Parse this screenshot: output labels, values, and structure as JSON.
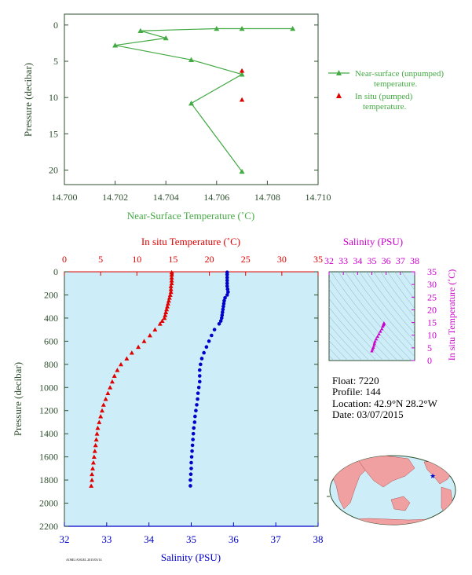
{
  "colors": {
    "frame": "#2f4f2f",
    "green": "#44aa44",
    "red": "#e00000",
    "blue": "#0000cc",
    "magenta": "#cc00cc",
    "panel_bg": "#cdeef8",
    "land": "#f0a0a0",
    "ocean": "#cdeef8"
  },
  "float_info": {
    "float": "Float:  7220",
    "profile": "Profile:  144",
    "location": "Location:  42.9°N  28.2°W",
    "date": "Date:  03/07/2015"
  },
  "footer_text": "AOML/ANGEL 2015/03/14",
  "chart_data": [
    {
      "type": "line",
      "id": "near-surface",
      "xlabel": "Near-Surface Temperature (˚C)",
      "ylabel": "Pressure (decibar)",
      "xlim": [
        14.7,
        14.71
      ],
      "ylim": [
        22,
        -1.5
      ],
      "xticks": [
        "14.700",
        "14.702",
        "14.704",
        "14.706",
        "14.708",
        "14.710"
      ],
      "yticks": [
        "0",
        "5",
        "10",
        "15",
        "20"
      ],
      "series": [
        {
          "name": "Near-surface (unpumped) temperature.",
          "marker": "triangle",
          "x": [
            14.709,
            14.707,
            14.706,
            14.703,
            14.704,
            14.702,
            14.705,
            14.707,
            14.705,
            14.707
          ],
          "y": [
            0.5,
            0.5,
            0.5,
            0.8,
            1.8,
            2.8,
            4.8,
            6.8,
            10.8,
            20.2
          ]
        },
        {
          "name": "In situ (pumped) temperature.",
          "marker": "triangle",
          "x": [
            14.707,
            14.707
          ],
          "y": [
            6.3,
            10.3
          ]
        }
      ],
      "legend": "right"
    },
    {
      "type": "scatter",
      "id": "profile",
      "ylabel": "Pressure (decibar)",
      "ylim": [
        0,
        2200
      ],
      "yticks": [
        "0",
        "200",
        "400",
        "600",
        "800",
        "1000",
        "1200",
        "1400",
        "1600",
        "1800",
        "2000",
        "2200"
      ],
      "top_axis": {
        "label": "In situ Temperature (˚C)",
        "range": [
          0,
          35
        ],
        "ticks": [
          "0",
          "5",
          "10",
          "15",
          "20",
          "25",
          "30",
          "35"
        ]
      },
      "bottom_axis": {
        "label": "Salinity (PSU)",
        "range": [
          32,
          38
        ],
        "ticks": [
          "32",
          "33",
          "34",
          "35",
          "36",
          "37",
          "38"
        ]
      },
      "temperature": {
        "pressure": [
          5,
          25,
          50,
          75,
          100,
          125,
          150,
          175,
          200,
          225,
          250,
          275,
          300,
          325,
          350,
          375,
          400,
          425,
          450,
          500,
          550,
          600,
          650,
          700,
          750,
          800,
          850,
          900,
          950,
          1000,
          1050,
          1100,
          1150,
          1200,
          1250,
          1300,
          1350,
          1400,
          1450,
          1500,
          1550,
          1600,
          1650,
          1700,
          1750,
          1800,
          1850
        ],
        "values": [
          14.8,
          14.8,
          14.8,
          14.8,
          14.8,
          14.7,
          14.7,
          14.7,
          14.6,
          14.5,
          14.4,
          14.3,
          14.2,
          14.1,
          14.0,
          13.9,
          13.8,
          13.5,
          13.2,
          12.5,
          11.8,
          11.0,
          10.2,
          9.3,
          8.6,
          7.8,
          7.3,
          6.9,
          6.6,
          6.3,
          6.0,
          5.7,
          5.4,
          5.2,
          5.0,
          4.8,
          4.6,
          4.5,
          4.4,
          4.3,
          4.2,
          4.1,
          4.0,
          3.9,
          3.8,
          3.8,
          3.7
        ]
      },
      "salinity": {
        "pressure": [
          5,
          25,
          50,
          75,
          100,
          125,
          150,
          175,
          200,
          225,
          250,
          275,
          300,
          325,
          350,
          375,
          400,
          425,
          450,
          500,
          550,
          600,
          650,
          700,
          750,
          800,
          850,
          900,
          950,
          1000,
          1050,
          1100,
          1150,
          1200,
          1250,
          1300,
          1350,
          1400,
          1450,
          1500,
          1550,
          1600,
          1650,
          1700,
          1750,
          1800,
          1850
        ],
        "values": [
          35.85,
          35.85,
          35.85,
          35.85,
          35.85,
          35.85,
          35.86,
          35.87,
          35.85,
          35.8,
          35.78,
          35.77,
          35.76,
          35.75,
          35.74,
          35.73,
          35.72,
          35.7,
          35.66,
          35.55,
          35.48,
          35.42,
          35.36,
          35.3,
          35.25,
          35.22,
          35.2,
          35.2,
          35.2,
          35.18,
          35.16,
          35.15,
          35.13,
          35.11,
          35.09,
          35.08,
          35.06,
          35.05,
          35.04,
          35.03,
          35.02,
          35.01,
          35.0,
          35.0,
          34.99,
          34.98,
          34.98
        ]
      }
    },
    {
      "type": "scatter",
      "id": "ts-diagram",
      "top_label": "Salinity (PSU)",
      "right_label": "In situ Temperature (˚C)",
      "xlim": [
        32,
        38
      ],
      "ylim": [
        0,
        35
      ],
      "xticks": [
        "32",
        "33",
        "34",
        "35",
        "36",
        "37",
        "38"
      ],
      "yticks": [
        "0",
        "5",
        "10",
        "15",
        "20",
        "25",
        "30",
        "35"
      ],
      "points_s": [
        35.85,
        35.84,
        35.83,
        35.8,
        35.76,
        35.7,
        35.6,
        35.5,
        35.4,
        35.3,
        35.22,
        35.18,
        35.15,
        35.1,
        35.05,
        35.0
      ],
      "points_t": [
        14.8,
        14.6,
        14.3,
        14.0,
        13.5,
        12.5,
        11.5,
        10.5,
        9.5,
        8.5,
        7.6,
        6.8,
        6.0,
        5.2,
        4.5,
        3.8
      ]
    }
  ],
  "map": {
    "marker_name": "float-location-marker"
  }
}
